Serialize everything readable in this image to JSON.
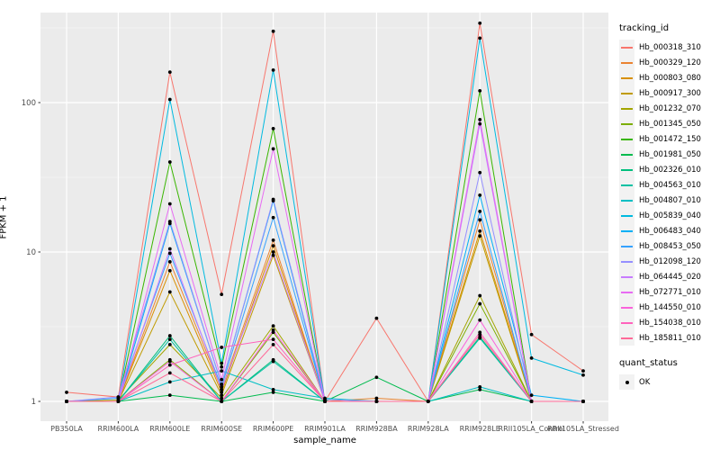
{
  "chart_data": {
    "type": "line",
    "title": "",
    "xlabel": "sample_name",
    "ylabel": "FPKM + 1",
    "y_scale": "log10",
    "y_ticks": [
      1,
      10,
      100
    ],
    "y_minor_ticks": [
      3.162,
      31.62,
      316.2
    ],
    "ylim": [
      1,
      420
    ],
    "grid": true,
    "panel_bg": "#EBEBEB",
    "grid_color": "#FFFFFF",
    "point_color": "#000000",
    "tick_label_color": "#4D4D4D",
    "categories": [
      "PB350LA",
      "RRIM600LA",
      "RRIM600LE",
      "RRIM600SE",
      "RRIM600PE",
      "RRIM901LA",
      "RRIM928BA",
      "RRIM928LA",
      "RRIM928LE",
      "RRII105LA_Control",
      "RRII105LA_Stressed"
    ],
    "series": [
      {
        "name": "Hb_000318_310",
        "color": "#F8766D",
        "values": [
          1.15,
          1.07,
          160,
          5.2,
          300,
          1.0,
          3.6,
          1.0,
          340,
          2.8,
          1.6
        ]
      },
      {
        "name": "Hb_000329_120",
        "color": "#EA8331",
        "values": [
          1.0,
          1.0,
          8.6,
          1.2,
          12,
          1.0,
          1.05,
          1.0,
          16.4,
          1.0,
          1.0
        ]
      },
      {
        "name": "Hb_000803_080",
        "color": "#D89000",
        "values": [
          1.0,
          1.0,
          7.5,
          1.15,
          11,
          1.0,
          1.0,
          1.0,
          13.8,
          1.0,
          1.0
        ]
      },
      {
        "name": "Hb_000917_300",
        "color": "#C09B00",
        "values": [
          1.0,
          1.0,
          5.4,
          1.1,
          9.5,
          1.0,
          1.0,
          1.0,
          12.8,
          1.0,
          1.0
        ]
      },
      {
        "name": "Hb_001232_070",
        "color": "#A3A500",
        "values": [
          1.0,
          1.02,
          2.4,
          1.05,
          3.2,
          1.0,
          1.0,
          1.0,
          5.1,
          1.0,
          1.0
        ]
      },
      {
        "name": "Hb_001345_050",
        "color": "#7CAE00",
        "values": [
          1.0,
          1.0,
          1.9,
          1.0,
          2.9,
          1.0,
          1.0,
          1.0,
          4.5,
          1.0,
          1.0
        ]
      },
      {
        "name": "Hb_001472_150",
        "color": "#39B600",
        "values": [
          1.0,
          1.0,
          40,
          1.7,
          67,
          1.0,
          1.0,
          1.0,
          120,
          1.0,
          1.0
        ]
      },
      {
        "name": "Hb_001981_050",
        "color": "#00BB4E",
        "values": [
          1.0,
          1.0,
          1.1,
          1.0,
          1.15,
          1.0,
          1.45,
          1.0,
          1.2,
          1.0,
          1.0
        ]
      },
      {
        "name": "Hb_002326_010",
        "color": "#00BF7D",
        "values": [
          1.0,
          1.0,
          2.75,
          1.0,
          1.9,
          1.0,
          1.0,
          1.0,
          2.7,
          1.0,
          1.0
        ]
      },
      {
        "name": "Hb_004563_010",
        "color": "#00C1A3",
        "values": [
          1.0,
          1.0,
          2.6,
          1.0,
          1.85,
          1.0,
          1.0,
          1.0,
          2.65,
          1.0,
          1.0
        ]
      },
      {
        "name": "Hb_004807_010",
        "color": "#00BFC4",
        "values": [
          1.0,
          1.0,
          1.35,
          1.6,
          1.2,
          1.05,
          1.0,
          1.0,
          1.25,
          1.0,
          1.0
        ]
      },
      {
        "name": "Hb_005839_040",
        "color": "#00BAE0",
        "values": [
          1.0,
          1.0,
          105,
          1.8,
          165,
          1.0,
          1.0,
          1.0,
          270,
          1.95,
          1.5
        ]
      },
      {
        "name": "Hb_006483_040",
        "color": "#00B0F6",
        "values": [
          1.0,
          1.0,
          15.5,
          1.3,
          22,
          1.0,
          1.0,
          1.0,
          24,
          1.1,
          1.0
        ]
      },
      {
        "name": "Hb_008453_050",
        "color": "#35A2FF",
        "values": [
          1.0,
          1.05,
          9.8,
          1.25,
          17,
          1.0,
          1.0,
          1.0,
          18.7,
          1.0,
          1.0
        ]
      },
      {
        "name": "Hb_012098_120",
        "color": "#9590FF",
        "values": [
          1.0,
          1.07,
          16,
          1.3,
          22.5,
          1.03,
          1.0,
          1.0,
          34,
          1.0,
          1.0
        ]
      },
      {
        "name": "Hb_064445_020",
        "color": "#C77CFF",
        "values": [
          1.0,
          1.0,
          10.5,
          1.2,
          10,
          1.0,
          1.0,
          1.0,
          72,
          1.0,
          1.0
        ]
      },
      {
        "name": "Hb_072771_010",
        "color": "#E76BF3",
        "values": [
          1.0,
          1.0,
          21,
          1.4,
          49,
          1.0,
          1.0,
          1.0,
          77,
          1.0,
          1.0
        ]
      },
      {
        "name": "Hb_144550_010",
        "color": "#FA62DB",
        "values": [
          1.0,
          1.0,
          1.85,
          1.0,
          3.0,
          1.0,
          1.0,
          1.0,
          3.5,
          1.0,
          1.0
        ]
      },
      {
        "name": "Hb_154038_010",
        "color": "#FF62BC",
        "values": [
          1.0,
          1.0,
          1.75,
          2.3,
          2.6,
          1.0,
          1.0,
          1.0,
          2.9,
          1.0,
          1.0
        ]
      },
      {
        "name": "Hb_185811_010",
        "color": "#FF6A98",
        "values": [
          1.0,
          1.0,
          1.55,
          1.0,
          2.4,
          1.0,
          1.0,
          1.0,
          2.8,
          1.0,
          1.0
        ]
      }
    ]
  },
  "legend": {
    "tracking_title": "tracking_id",
    "quant_title": "quant_status",
    "quant_items": [
      {
        "label": "OK"
      }
    ]
  }
}
